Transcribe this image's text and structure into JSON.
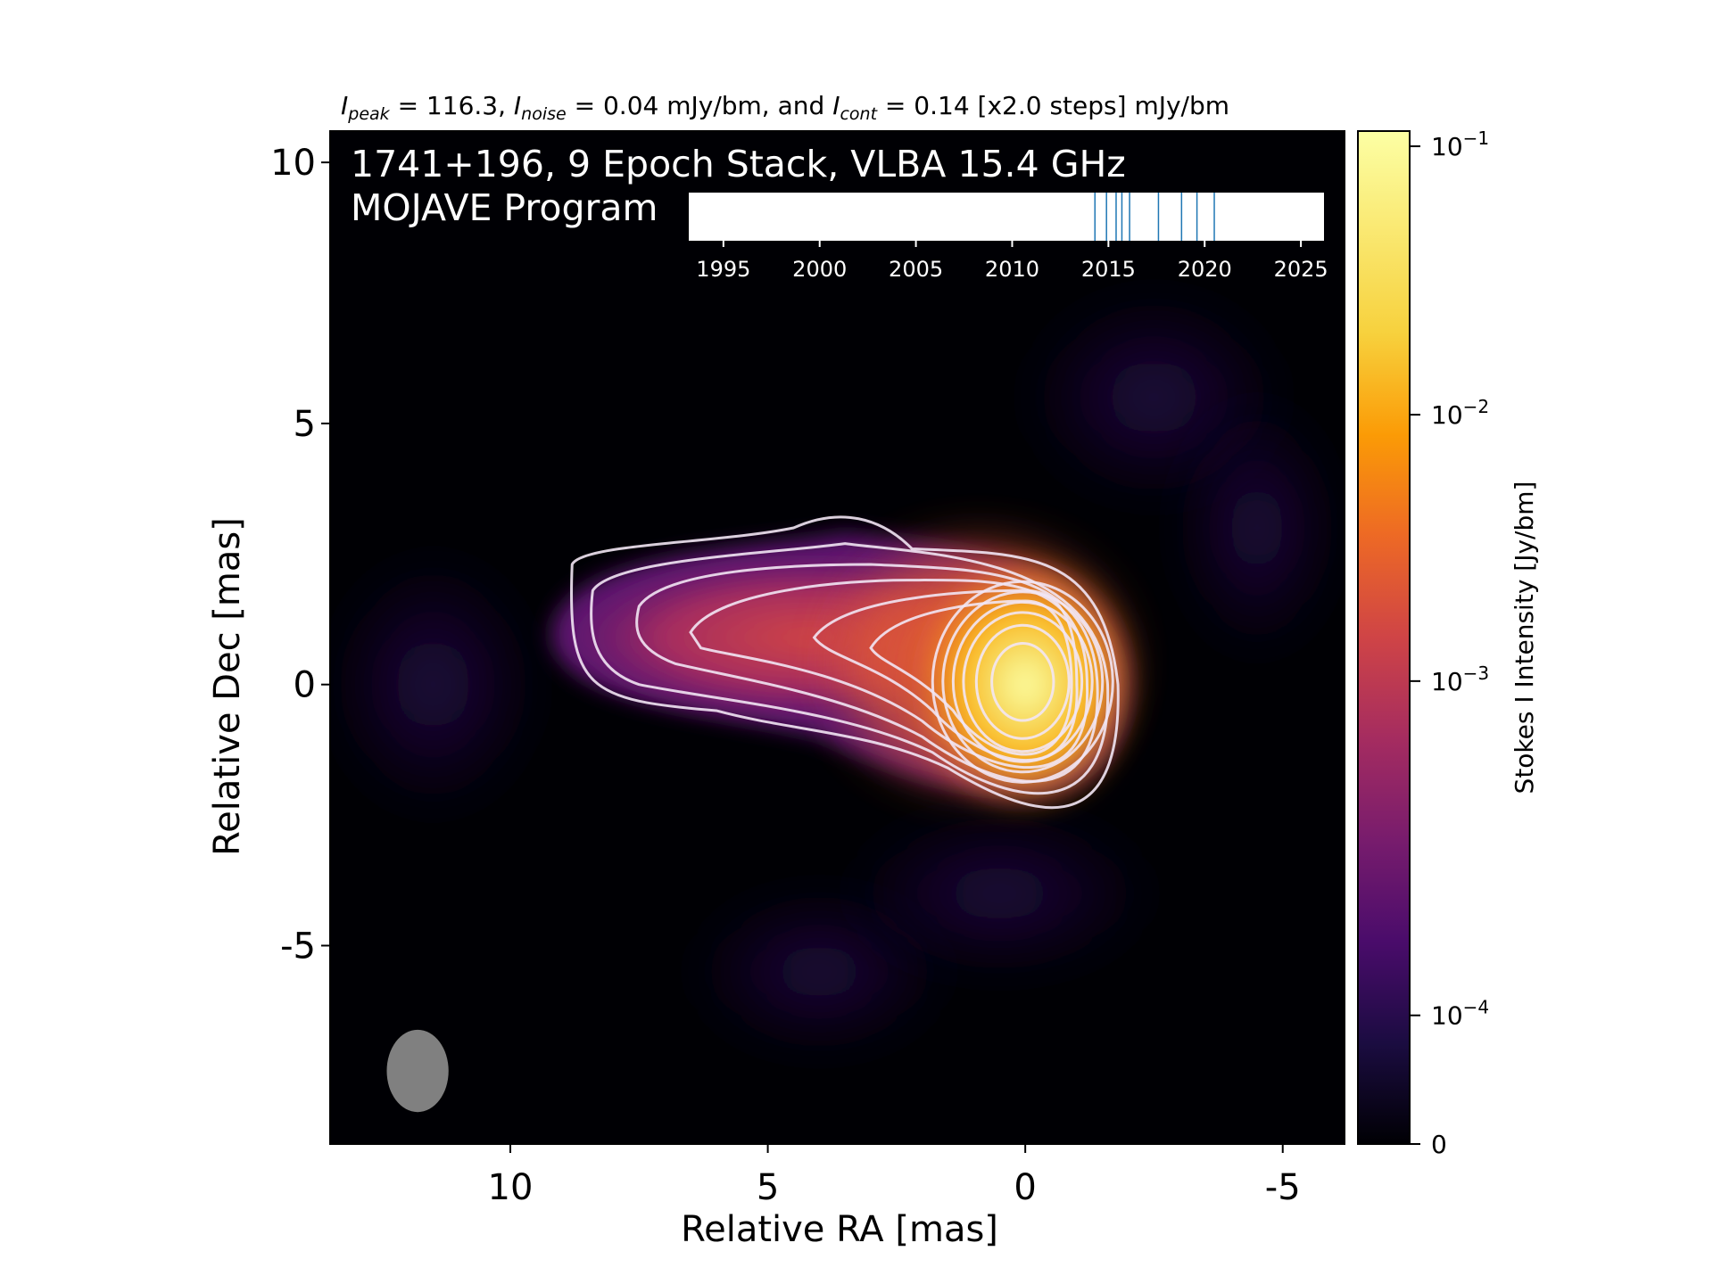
{
  "header": {
    "peak_symbol": "I",
    "peak_sub": "peak",
    "peak_value": " = 116.3, ",
    "noise_symbol": "I",
    "noise_sub": "noise",
    "noise_value": " = 0.04 mJy/bm, and ",
    "cont_symbol": "I",
    "cont_sub": "cont",
    "cont_value": " = 0.14 [x2.0 steps] mJy/bm"
  },
  "overlay": {
    "line1": "1741+196, 9 Epoch Stack, VLBA 15.4 GHz",
    "line2": "MOJAVE Program"
  },
  "colors": {
    "background": "#000004",
    "contour": "#f2e6f4",
    "beam": "#808080",
    "epoch_line": "#1f77b4"
  },
  "chart_data": {
    "type": "heatmap",
    "title": "",
    "colormap": "inferno",
    "xlabel": "Relative RA [mas]",
    "ylabel": "Relative Dec [mas]",
    "xlim": [
      13.5,
      -6.2
    ],
    "ylim": [
      -8.8,
      10.6
    ],
    "x_ticks": [
      10,
      5,
      0,
      -5
    ],
    "x_tick_labels": [
      "10",
      "5",
      "0",
      "-5"
    ],
    "y_ticks": [
      10,
      5,
      0,
      -5
    ],
    "y_tick_labels": [
      "10",
      "5",
      "0",
      "-5"
    ],
    "colorbar": {
      "label": "Stokes I Intensity [Jy/bm]",
      "ticks": [
        {
          "base": "10",
          "exp": "−1",
          "value": 0.1
        },
        {
          "base": "10",
          "exp": "−2",
          "value": 0.01
        },
        {
          "base": "10",
          "exp": "−3",
          "value": 0.001
        },
        {
          "base": "10",
          "exp": "−4",
          "value": 0.0001
        },
        {
          "base": "0",
          "exp": "",
          "value": 0
        }
      ],
      "tick_fracs": [
        0.985,
        0.72,
        0.457,
        0.127,
        0.0
      ]
    },
    "contour_levels_mjy": [
      0.14,
      0.28,
      0.56,
      1.12,
      2.24,
      4.48,
      8.96,
      17.92,
      35.84,
      71.68
    ],
    "peak_mjy": 116.3,
    "beam": {
      "x": 11.8,
      "y": -7.4,
      "major_mas": 1.6,
      "minor_mas": 1.2,
      "pa_deg": 0
    },
    "timeline": {
      "xlim": [
        1993.2,
        2026.2
      ],
      "ticks": [
        1995,
        2000,
        2005,
        2010,
        2015,
        2020,
        2025
      ],
      "tick_labels": [
        "1995",
        "2000",
        "2005",
        "2010",
        "2015",
        "2020",
        "2025"
      ],
      "epochs": [
        2014.3,
        2014.9,
        2015.4,
        2015.7,
        2016.1,
        2017.6,
        2018.8,
        2019.6,
        2020.5
      ]
    }
  }
}
